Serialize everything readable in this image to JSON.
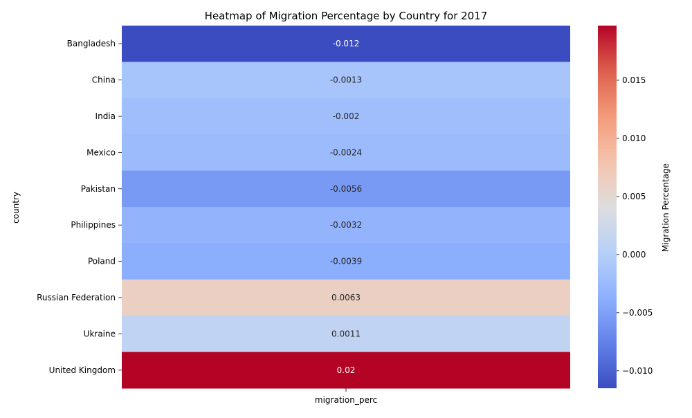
{
  "chart_data": {
    "type": "heatmap",
    "title": "Heatmap of Migration Percentage by Country for 2017",
    "xlabel": "",
    "ylabel": "country",
    "x_categories": [
      "migration_perc"
    ],
    "rows": [
      {
        "country": "Bangladesh",
        "value": -0.0115,
        "label": "-0.012"
      },
      {
        "country": "China",
        "value": -0.0013,
        "label": "-0.0013"
      },
      {
        "country": "India",
        "value": -0.002,
        "label": "-0.002"
      },
      {
        "country": "Mexico",
        "value": -0.0024,
        "label": "-0.0024"
      },
      {
        "country": "Pakistan",
        "value": -0.0056,
        "label": "-0.0056"
      },
      {
        "country": "Philippines",
        "value": -0.0032,
        "label": "-0.0032"
      },
      {
        "country": "Poland",
        "value": -0.0039,
        "label": "-0.0039"
      },
      {
        "country": "Russian Federation",
        "value": 0.0063,
        "label": "0.0063"
      },
      {
        "country": "Ukraine",
        "value": 0.0011,
        "label": "0.0011"
      },
      {
        "country": "United Kingdom",
        "value": 0.0197,
        "label": "0.02"
      }
    ],
    "colormap": "coolwarm",
    "vmin": -0.0115,
    "vmax": 0.0197,
    "colorbar": {
      "label": "Migration Percentage",
      "ticks": [
        -0.01,
        -0.005,
        0.0,
        0.005,
        0.01,
        0.015
      ],
      "tick_labels": [
        "−0.010",
        "−0.005",
        "0.000",
        "0.005",
        "0.010",
        "0.015"
      ]
    }
  }
}
